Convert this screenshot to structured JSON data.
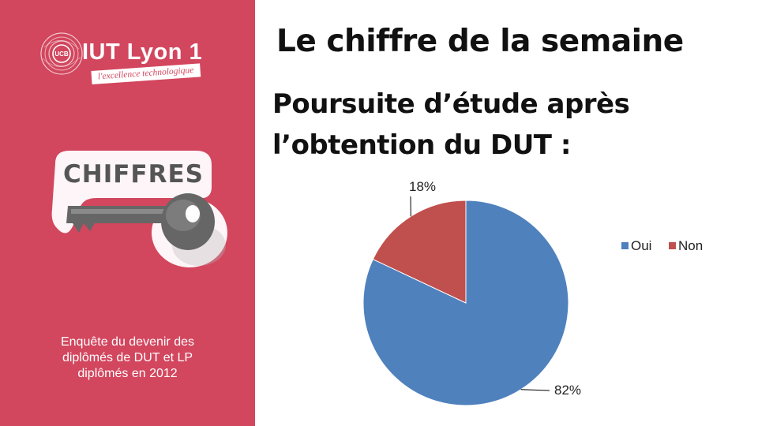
{
  "sidebar": {
    "logo": {
      "name": "IUT Lyon 1",
      "emblem": "UCB",
      "tagline": "l'excellence technologique"
    },
    "badge": {
      "label": "CHIFFRES",
      "icon": "key-icon"
    },
    "survey_note": {
      "line1": "Enquête du devenir des",
      "line2": "diplômés de DUT et LP",
      "line3": "diplômés en 2012"
    },
    "background_color": "#d2465e"
  },
  "main": {
    "title": "Le chiffre de la semaine",
    "subtitle_line1": "Poursuite d’étude après",
    "subtitle_line2": "l’obtention du DUT :"
  },
  "chart_data": {
    "type": "pie",
    "categories": [
      "Oui",
      "Non"
    ],
    "values": [
      82,
      18
    ],
    "data_labels": [
      "82%",
      "18%"
    ],
    "colors": [
      "#4f81bd",
      "#c0504d"
    ],
    "legend_position": "right",
    "title": ""
  }
}
